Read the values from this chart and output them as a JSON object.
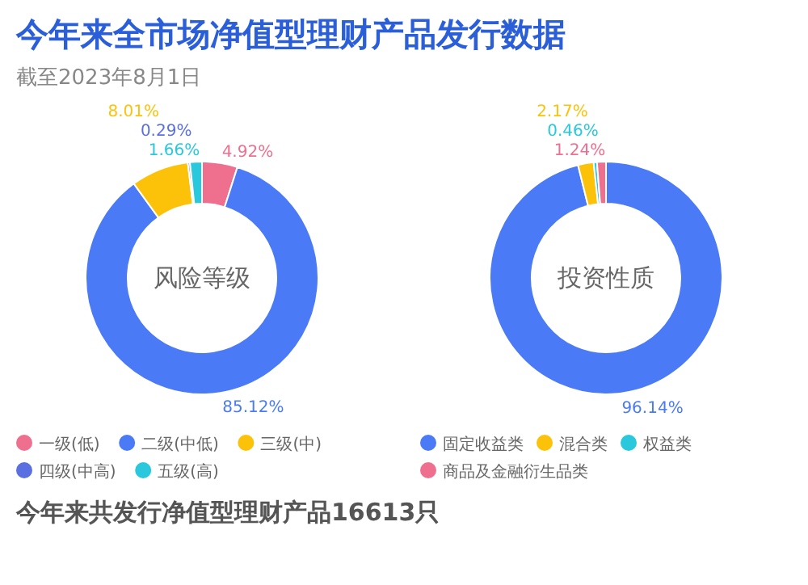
{
  "chart_data": [
    {
      "type": "other",
      "title": "今年来全市场净值型理财产品发行数据",
      "subtitle": "截至2023年8月1日",
      "annotations": [
        "今年来共发行净值型理财产品16613只"
      ]
    },
    {
      "type": "donut",
      "title": "风险等级",
      "categories": [
        "一级(低)",
        "二级(中低)",
        "三级(中)",
        "四级(中高)",
        "五级(高)"
      ],
      "values": [
        4.92,
        85.12,
        8.01,
        0.29,
        1.66
      ],
      "value_labels": [
        "4.92%",
        "85.12%",
        "8.01%",
        "0.29%",
        "1.66%"
      ],
      "colors": [
        "#ee6f8e",
        "#4a7af5",
        "#fcc20a",
        "#5a6fe0",
        "#29c8dc"
      ],
      "legend": "bottom"
    },
    {
      "type": "donut",
      "title": "投资性质",
      "categories": [
        "固定收益类",
        "混合类",
        "权益类",
        "商品及金融衍生品类"
      ],
      "values": [
        96.14,
        2.17,
        0.46,
        1.24
      ],
      "value_labels": [
        "96.14%",
        "2.17%",
        "0.46%",
        "1.24%"
      ],
      "colors": [
        "#4a7af5",
        "#fcc20a",
        "#29c8dc",
        "#ee6f8e"
      ],
      "legend": "bottom"
    }
  ]
}
